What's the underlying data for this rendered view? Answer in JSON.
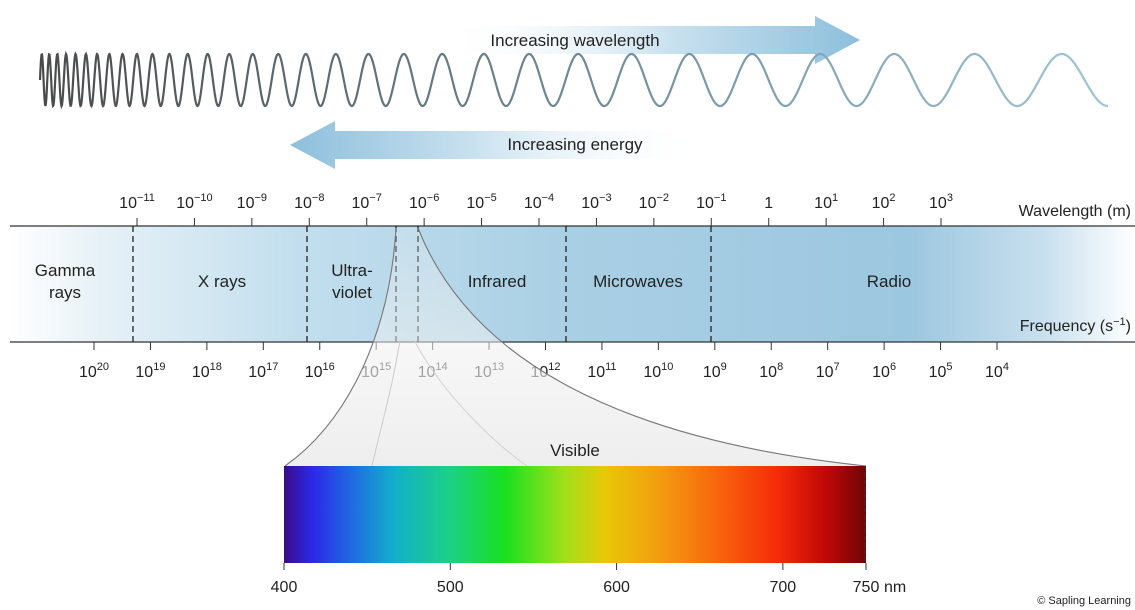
{
  "arrows": {
    "wavelength_label": "Increasing wavelength",
    "energy_label": "Increasing energy"
  },
  "wavelength_axis": {
    "label": "Wavelength (m)",
    "ticks": [
      {
        "base": "10",
        "exp": "−11"
      },
      {
        "base": "10",
        "exp": "−10"
      },
      {
        "base": "10",
        "exp": "−9"
      },
      {
        "base": "10",
        "exp": "−8"
      },
      {
        "base": "10",
        "exp": "−7"
      },
      {
        "base": "10",
        "exp": "−6"
      },
      {
        "base": "10",
        "exp": "−5"
      },
      {
        "base": "10",
        "exp": "−4"
      },
      {
        "base": "10",
        "exp": "−3"
      },
      {
        "base": "10",
        "exp": "−2"
      },
      {
        "base": "10",
        "exp": "−1"
      },
      {
        "base": "1",
        "exp": ""
      },
      {
        "base": "10",
        "exp": "1"
      },
      {
        "base": "10",
        "exp": "2"
      },
      {
        "base": "10",
        "exp": "3"
      }
    ]
  },
  "frequency_axis": {
    "label": "Frequency (s",
    "label_exp": "−1",
    "label_close": ")",
    "ticks": [
      {
        "base": "10",
        "exp": "20"
      },
      {
        "base": "10",
        "exp": "19"
      },
      {
        "base": "10",
        "exp": "18"
      },
      {
        "base": "10",
        "exp": "17"
      },
      {
        "base": "10",
        "exp": "16"
      },
      {
        "base": "10",
        "exp": "15"
      },
      {
        "base": "10",
        "exp": "14"
      },
      {
        "base": "10",
        "exp": "13"
      },
      {
        "base": "10",
        "exp": "12"
      },
      {
        "base": "10",
        "exp": "11"
      },
      {
        "base": "10",
        "exp": "10"
      },
      {
        "base": "10",
        "exp": "9"
      },
      {
        "base": "10",
        "exp": "8"
      },
      {
        "base": "10",
        "exp": "7"
      },
      {
        "base": "10",
        "exp": "6"
      },
      {
        "base": "10",
        "exp": "5"
      },
      {
        "base": "10",
        "exp": "4"
      }
    ]
  },
  "regions": {
    "gamma_line1": "Gamma",
    "gamma_line2": "rays",
    "xrays": "X rays",
    "uv_line1": "Ultra-",
    "uv_line2": "violet",
    "infrared": "Infrared",
    "microwaves": "Microwaves",
    "radio": "Radio"
  },
  "visible": {
    "label": "Visible",
    "ticks": [
      "400",
      "500",
      "600",
      "700",
      "750"
    ],
    "unit": "nm"
  },
  "credit": "© Sapling Learning",
  "colors": {
    "band": "#a9cfe4",
    "arrow": "#8fbfdd",
    "wave": "#555555"
  }
}
